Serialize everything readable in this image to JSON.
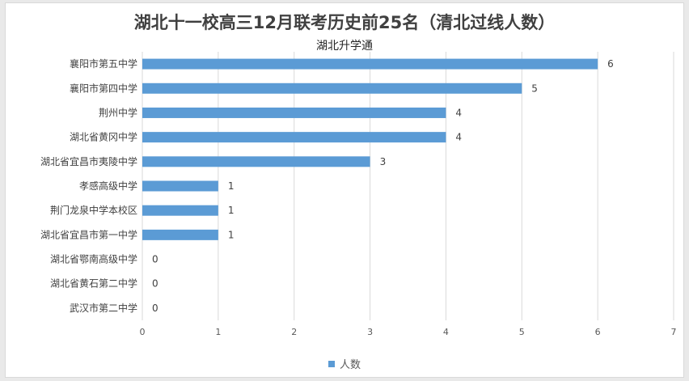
{
  "chart_data": {
    "type": "bar",
    "orientation": "horizontal",
    "title": "湖北十一校高三12月联考历史前25名（清北过线人数）",
    "subtitle": "湖北升学通",
    "categories": [
      "襄阳市第五中学",
      "襄阳市第四中学",
      "荆州中学",
      "湖北省黄冈中学",
      "湖北省宜昌市夷陵中学",
      "孝感高级中学",
      "荆门龙泉中学本校区",
      "湖北省宜昌市第一中学",
      "湖北省鄂南高级中学",
      "湖北省黄石第二中学",
      "武汉市第二中学"
    ],
    "series": [
      {
        "name": "人数",
        "values": [
          6,
          5,
          4,
          4,
          3,
          1,
          1,
          1,
          0,
          0,
          0
        ]
      }
    ],
    "xlim": [
      0,
      7
    ],
    "xticks": [
      "0",
      "1",
      "2",
      "3",
      "4",
      "5",
      "6",
      "7"
    ],
    "grid": "vertical",
    "data_labels": true,
    "legend_position": "bottom",
    "bar_color": "#5b9bd5"
  }
}
